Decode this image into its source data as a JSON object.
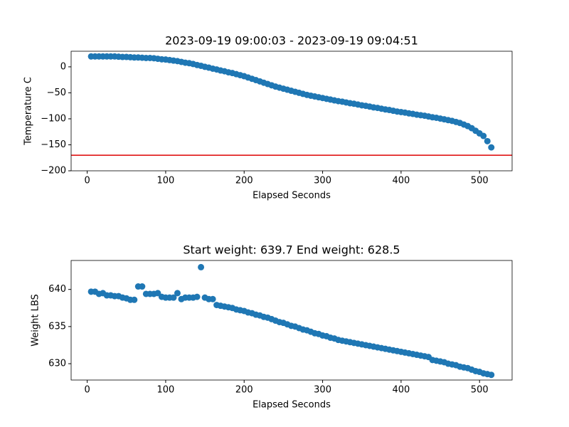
{
  "chart_data": [
    {
      "type": "scatter",
      "title": "2023-09-19 09:00:03 - 2023-09-19 09:04:51",
      "xlabel": "Elapsed Seconds",
      "ylabel": "Temperature C",
      "color": "#1f77b4",
      "x": [
        5,
        10,
        15,
        20,
        25,
        30,
        35,
        40,
        45,
        50,
        55,
        60,
        65,
        70,
        75,
        80,
        85,
        90,
        95,
        100,
        105,
        110,
        115,
        120,
        125,
        130,
        135,
        140,
        145,
        150,
        155,
        160,
        165,
        170,
        175,
        180,
        185,
        190,
        195,
        200,
        205,
        210,
        215,
        220,
        225,
        230,
        235,
        240,
        245,
        250,
        255,
        260,
        265,
        270,
        275,
        280,
        285,
        290,
        295,
        300,
        305,
        310,
        315,
        320,
        325,
        330,
        335,
        340,
        345,
        350,
        355,
        360,
        365,
        370,
        375,
        380,
        385,
        390,
        395,
        400,
        405,
        410,
        415,
        420,
        425,
        430,
        435,
        440,
        445,
        450,
        455,
        460,
        465,
        470,
        475,
        480,
        485,
        490,
        495,
        500,
        505,
        510,
        515
      ],
      "values": [
        20,
        20,
        20,
        20,
        20,
        20,
        20,
        19.5,
        19,
        19,
        18.5,
        18,
        18,
        17.5,
        17,
        17,
        16.5,
        15.5,
        14.5,
        14,
        13,
        12,
        11,
        9.5,
        8,
        7,
        5.5,
        3.5,
        2,
        0,
        -1.5,
        -3.5,
        -5,
        -7,
        -8.5,
        -10.5,
        -12,
        -14,
        -16,
        -18,
        -20.5,
        -23,
        -25.5,
        -28,
        -30.5,
        -33,
        -35.5,
        -38,
        -40,
        -42,
        -44,
        -46,
        -48,
        -50,
        -52,
        -54,
        -55.5,
        -57,
        -58.5,
        -60,
        -61.5,
        -63,
        -64.5,
        -66,
        -67,
        -68.5,
        -70,
        -71,
        -72.5,
        -74,
        -75,
        -76.5,
        -78,
        -79,
        -80.5,
        -82,
        -83,
        -84.5,
        -86,
        -87,
        -88,
        -89.5,
        -90.5,
        -92,
        -93,
        -94,
        -95.5,
        -97,
        -98,
        -99.5,
        -101,
        -102.5,
        -104,
        -106,
        -108,
        -111,
        -114,
        -118,
        -123,
        -128,
        -133,
        -143,
        -155
      ],
      "xlim": [
        -20.5,
        541.5
      ],
      "ylim": [
        -200,
        30
      ],
      "xticks": [
        0,
        100,
        200,
        300,
        400,
        500
      ],
      "yticks": [
        {
          "value": -200,
          "label": "−200"
        },
        {
          "value": -150,
          "label": "−150"
        },
        {
          "value": -100,
          "label": "−100"
        },
        {
          "value": -50,
          "label": "−50"
        },
        0
      ],
      "hline": {
        "value": -170,
        "color": "#dd0000"
      }
    },
    {
      "type": "scatter",
      "title": "Start weight: 639.7 End weight: 628.5",
      "xlabel": "Elapsed Seconds",
      "ylabel": "Weight LBS",
      "color": "#1f77b4",
      "x": [
        5,
        10,
        15,
        20,
        25,
        30,
        35,
        40,
        45,
        50,
        55,
        60,
        65,
        70,
        75,
        80,
        85,
        90,
        95,
        100,
        105,
        110,
        115,
        120,
        125,
        130,
        135,
        140,
        145,
        150,
        155,
        160,
        165,
        170,
        175,
        180,
        185,
        190,
        195,
        200,
        205,
        210,
        215,
        220,
        225,
        230,
        235,
        240,
        245,
        250,
        255,
        260,
        265,
        270,
        275,
        280,
        285,
        290,
        295,
        300,
        305,
        310,
        315,
        320,
        325,
        330,
        335,
        340,
        345,
        350,
        355,
        360,
        365,
        370,
        375,
        380,
        385,
        390,
        395,
        400,
        405,
        410,
        415,
        420,
        425,
        430,
        435,
        440,
        445,
        450,
        455,
        460,
        465,
        470,
        475,
        480,
        485,
        490,
        495,
        500,
        505,
        510,
        515
      ],
      "values": [
        639.7,
        639.7,
        639.4,
        639.5,
        639.2,
        639.2,
        639.1,
        639.1,
        638.9,
        638.8,
        638.6,
        638.6,
        640.4,
        640.4,
        639.4,
        639.4,
        639.4,
        639.5,
        639.0,
        638.9,
        638.9,
        638.9,
        639.5,
        638.7,
        638.9,
        638.9,
        638.9,
        639.0,
        643.0,
        638.9,
        638.7,
        638.7,
        637.9,
        637.8,
        637.7,
        637.6,
        637.5,
        637.3,
        637.2,
        637.1,
        636.9,
        636.8,
        636.6,
        636.5,
        636.3,
        636.2,
        636.0,
        635.8,
        635.6,
        635.5,
        635.3,
        635.1,
        635.0,
        634.8,
        634.6,
        634.5,
        634.3,
        634.1,
        634.0,
        633.8,
        633.7,
        633.5,
        633.4,
        633.2,
        633.1,
        633.0,
        632.9,
        632.8,
        632.7,
        632.6,
        632.5,
        632.4,
        632.3,
        632.2,
        632.1,
        632.0,
        631.9,
        631.8,
        631.7,
        631.6,
        631.5,
        631.4,
        631.3,
        631.2,
        631.1,
        631.0,
        630.9,
        630.5,
        630.4,
        630.3,
        630.2,
        630.0,
        629.9,
        629.8,
        629.6,
        629.5,
        629.4,
        629.2,
        629.0,
        628.9,
        628.7,
        628.6,
        628.5
      ],
      "xlim": [
        -20.5,
        541.5
      ],
      "ylim": [
        627.8,
        643.9
      ],
      "xticks": [
        0,
        100,
        200,
        300,
        400,
        500
      ],
      "yticks": [
        630,
        635,
        640
      ]
    }
  ]
}
